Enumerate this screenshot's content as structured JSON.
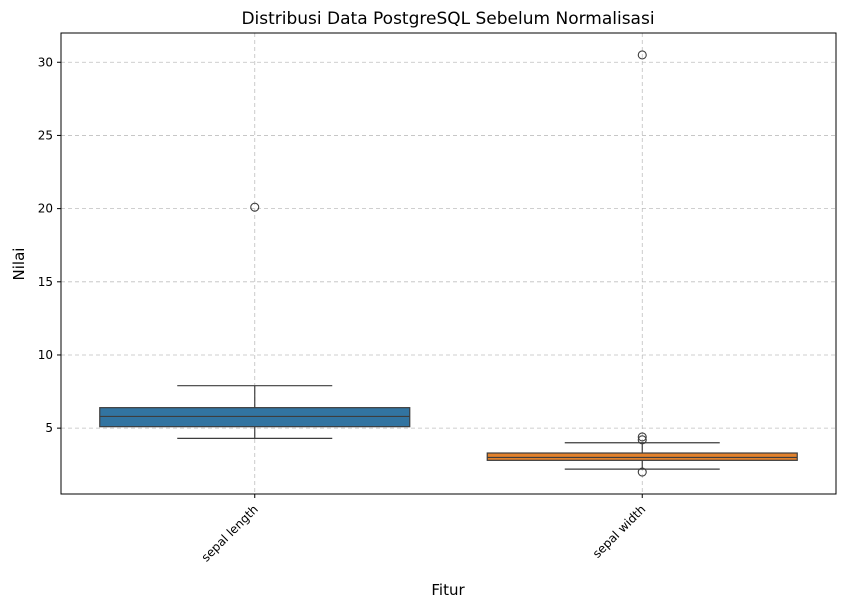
{
  "chart_data": {
    "type": "box",
    "title": "Distribusi Data PostgreSQL Sebelum Normalisasi",
    "xlabel": "Fitur",
    "ylabel": "Nilai",
    "ylim": [
      0.5,
      32
    ],
    "yticks": [
      5,
      10,
      15,
      20,
      25,
      30
    ],
    "grid": true,
    "categories": [
      "sepal length",
      "sepal width"
    ],
    "colors": [
      "#3274a1",
      "#e1812c"
    ],
    "boxes": [
      {
        "category": "sepal length",
        "whisker_low": 4.3,
        "q1": 5.1,
        "median": 5.8,
        "q3": 6.4,
        "whisker_high": 7.9,
        "outliers": [
          20.1
        ]
      },
      {
        "category": "sepal width",
        "whisker_low": 2.2,
        "q1": 2.8,
        "median": 3.0,
        "q3": 3.3,
        "whisker_high": 4.0,
        "outliers": [
          30.5,
          4.4,
          4.2,
          2.0
        ]
      }
    ]
  }
}
